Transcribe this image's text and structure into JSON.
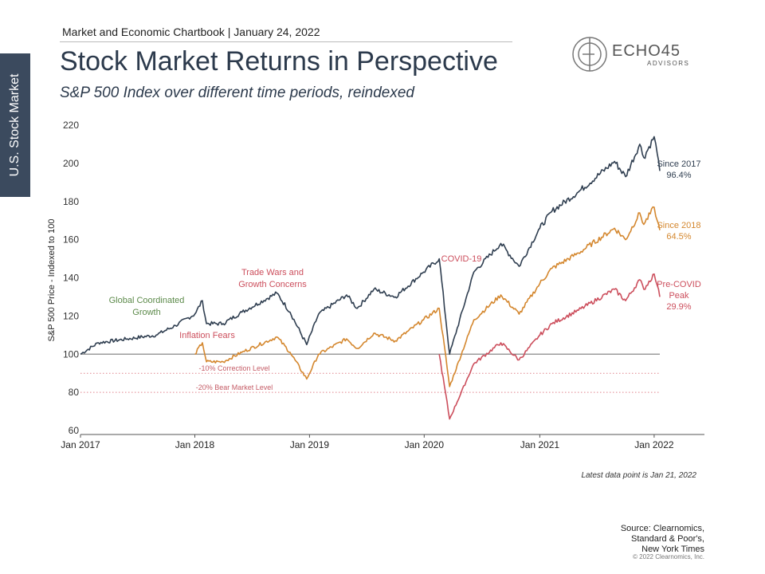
{
  "sidebar": {
    "label": "U.S. Stock Market"
  },
  "header": {
    "top_line": "Market and Economic Chartbook | January 24, 2022",
    "title": "Stock Market Returns in Perspective",
    "subtitle": "S&P 500 Index over different time periods, reindexed"
  },
  "logo": {
    "name": "ECHO45",
    "sub": "ADVISORS",
    "icon": "echo45-circle-logo"
  },
  "footer": {
    "latest": "Latest data point is Jan 21, 2022",
    "source_lines": [
      "Source: Clearnomics,",
      "Standard & Poor's,",
      "New York Times"
    ],
    "copyright": "© 2022 Clearnomics, Inc."
  },
  "colors": {
    "since2017": "#2f3e50",
    "since2018": "#d4872e",
    "precovid": "#cc4e5c",
    "growth": "#5c8a4a",
    "baseline": "#888888",
    "dotted": "#e0848c"
  },
  "chart_data": {
    "type": "line",
    "ylabel": "S&P 500 Price - Indexed to 100",
    "ylim": [
      60,
      220
    ],
    "yticks": [
      60,
      80,
      100,
      120,
      140,
      160,
      180,
      200,
      220
    ],
    "xlim": [
      "2017-01-03",
      "2022-01-21"
    ],
    "xticks": [
      "Jan 2017",
      "Jan 2018",
      "Jan 2019",
      "Jan 2020",
      "Jan 2021",
      "Jan 2022"
    ],
    "xtick_dates": [
      "2017-01-03",
      "2018-01-02",
      "2019-01-02",
      "2020-01-02",
      "2021-01-04",
      "2022-01-03"
    ],
    "series": [
      {
        "key": "since2017",
        "label": "Since 2017",
        "value_label": "96.4%",
        "color": "#2f3e50",
        "points": [
          [
            "2017-01-03",
            100
          ],
          [
            "2017-03-01",
            106
          ],
          [
            "2017-06-01",
            108
          ],
          [
            "2017-09-01",
            110
          ],
          [
            "2017-11-01",
            115
          ],
          [
            "2018-01-02",
            121
          ],
          [
            "2018-01-26",
            128
          ],
          [
            "2018-02-08",
            116
          ],
          [
            "2018-04-02",
            116
          ],
          [
            "2018-06-01",
            122
          ],
          [
            "2018-09-20",
            132
          ],
          [
            "2018-11-01",
            122
          ],
          [
            "2018-12-24",
            105
          ],
          [
            "2019-01-31",
            121
          ],
          [
            "2019-04-30",
            131
          ],
          [
            "2019-06-03",
            124
          ],
          [
            "2019-07-26",
            134
          ],
          [
            "2019-10-02",
            130
          ],
          [
            "2019-12-31",
            143
          ],
          [
            "2020-02-19",
            150
          ],
          [
            "2020-03-23",
            100
          ],
          [
            "2020-06-08",
            143
          ],
          [
            "2020-09-02",
            158
          ],
          [
            "2020-10-30",
            146
          ],
          [
            "2021-01-04",
            166
          ],
          [
            "2021-02-12",
            175
          ],
          [
            "2021-05-07",
            185
          ],
          [
            "2021-08-30",
            201
          ],
          [
            "2021-10-04",
            193
          ],
          [
            "2021-11-18",
            210
          ],
          [
            "2021-12-01",
            203
          ],
          [
            "2022-01-03",
            214
          ],
          [
            "2022-01-13",
            205
          ],
          [
            "2022-01-21",
            196
          ]
        ]
      },
      {
        "key": "since2018",
        "label": "Since 2018",
        "value_label": "64.5%",
        "color": "#d4872e",
        "points": [
          [
            "2018-01-02",
            100
          ],
          [
            "2018-01-26",
            106
          ],
          [
            "2018-02-08",
            96
          ],
          [
            "2018-04-02",
            96
          ],
          [
            "2018-06-01",
            101
          ],
          [
            "2018-09-20",
            109
          ],
          [
            "2018-11-01",
            101
          ],
          [
            "2018-12-24",
            87
          ],
          [
            "2019-01-31",
            100
          ],
          [
            "2019-04-30",
            108
          ],
          [
            "2019-06-03",
            103
          ],
          [
            "2019-07-26",
            111
          ],
          [
            "2019-10-02",
            107
          ],
          [
            "2019-12-31",
            118
          ],
          [
            "2020-02-19",
            124
          ],
          [
            "2020-03-23",
            83
          ],
          [
            "2020-06-08",
            118
          ],
          [
            "2020-09-02",
            131
          ],
          [
            "2020-10-30",
            121
          ],
          [
            "2021-01-04",
            137
          ],
          [
            "2021-02-12",
            145
          ],
          [
            "2021-05-07",
            153
          ],
          [
            "2021-08-30",
            166
          ],
          [
            "2021-10-04",
            160
          ],
          [
            "2021-11-18",
            174
          ],
          [
            "2021-12-01",
            168
          ],
          [
            "2022-01-03",
            177
          ],
          [
            "2022-01-13",
            170
          ],
          [
            "2022-01-21",
            165
          ]
        ]
      },
      {
        "key": "precovid",
        "label": "Pre-COVID Peak",
        "value_label": "29.9%",
        "color": "#cc4e5c",
        "points": [
          [
            "2020-02-19",
            100
          ],
          [
            "2020-03-23",
            66
          ],
          [
            "2020-06-08",
            95
          ],
          [
            "2020-09-02",
            106
          ],
          [
            "2020-10-30",
            97
          ],
          [
            "2021-01-04",
            110
          ],
          [
            "2021-02-12",
            116
          ],
          [
            "2021-05-07",
            123
          ],
          [
            "2021-08-30",
            134
          ],
          [
            "2021-10-04",
            128
          ],
          [
            "2021-11-18",
            139
          ],
          [
            "2021-12-01",
            134
          ],
          [
            "2022-01-03",
            142
          ],
          [
            "2022-01-13",
            136
          ],
          [
            "2022-01-21",
            130
          ]
        ]
      }
    ],
    "reference_lines": [
      {
        "y": 100,
        "style": "solid"
      },
      {
        "y": 90,
        "style": "dotted",
        "label": "-10% Correction Level"
      },
      {
        "y": 80,
        "style": "dotted",
        "label": "-20% Bear Market Level"
      }
    ],
    "annotations": [
      {
        "key": "growth",
        "lines": [
          "Global Coordinated",
          "Growth"
        ],
        "color": "#5c8a4a"
      },
      {
        "key": "trade",
        "lines": [
          "Trade Wars and",
          "Growth Concerns"
        ],
        "color": "#cc4e5c"
      },
      {
        "key": "inflation",
        "lines": [
          "Inflation Fears"
        ],
        "color": "#cc4e5c"
      },
      {
        "key": "covid",
        "lines": [
          "COVID-19"
        ],
        "color": "#cc4e5c"
      }
    ]
  }
}
